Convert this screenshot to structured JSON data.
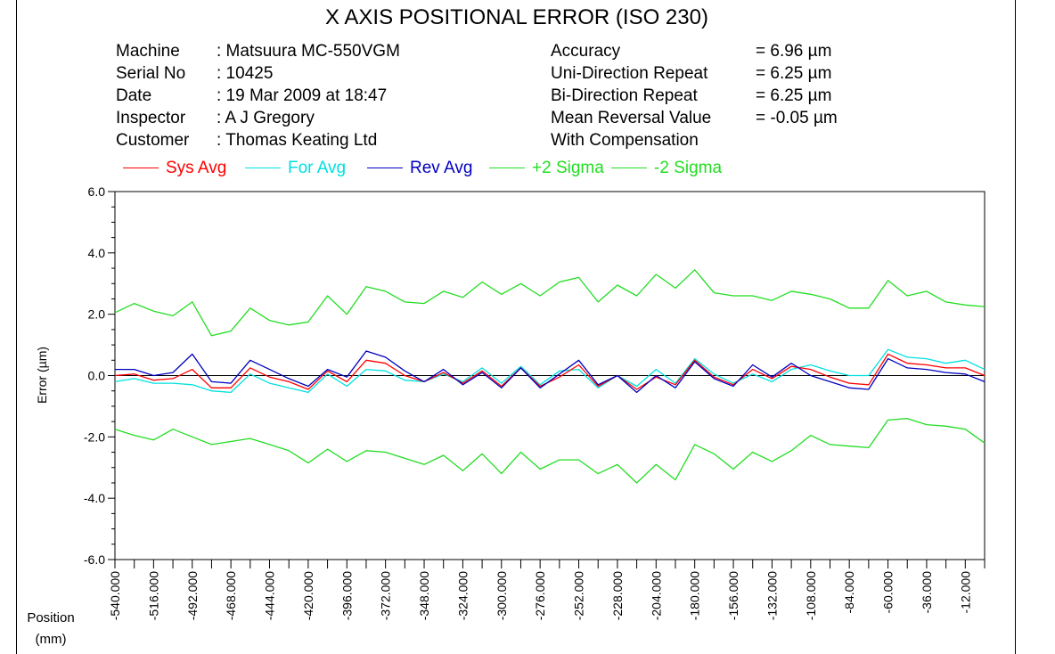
{
  "report": {
    "title": "X AXIS POSITIONAL ERROR (ISO 230)",
    "fields_left": [
      {
        "label": "Machine",
        "value": ": Matsuura MC-550VGM"
      },
      {
        "label": "Serial No",
        "value": ": 10425"
      },
      {
        "label": "Date",
        "value": ": 19 Mar 2009 at 18:47"
      },
      {
        "label": "Inspector",
        "value": ": A J Gregory"
      },
      {
        "label": "Customer",
        "value": ": Thomas Keating Ltd"
      }
    ],
    "fields_right": [
      {
        "label": "Accuracy",
        "value": "=  6.96 µm"
      },
      {
        "label": "Uni-Direction Repeat",
        "value": "=  6.25 µm"
      },
      {
        "label": "Bi-Direction Repeat",
        "value": "=  6.25 µm"
      },
      {
        "label": "Mean Reversal Value",
        "value": "= -0.05 µm"
      },
      {
        "label": "With Compensation",
        "value": ""
      }
    ]
  },
  "chart_data": {
    "type": "line",
    "ylabel": "Error (µm)",
    "xlabel": "Position\n(mm)",
    "ylim": [
      -6.0,
      6.0
    ],
    "xlim": [
      -540,
      0
    ],
    "y_ticks": [
      6.0,
      4.0,
      2.0,
      0.0,
      -2.0,
      -4.0,
      -6.0
    ],
    "y_tick_labels": [
      "6.0",
      "4.0",
      "2.0",
      "0.0",
      "-2.0",
      "-4.0",
      "-6.0"
    ],
    "x_tick_labels": [
      "-540.000",
      "-516.000",
      "-492.000",
      "-468.000",
      "-444.000",
      "-420.000",
      "-396.000",
      "-372.000",
      "-348.000",
      "-324.000",
      "-300.000",
      "-276.000",
      "-252.000",
      "-228.000",
      "-204.000",
      "-180.000",
      "-156.000",
      "-132.000",
      "-108.000",
      "-84.000",
      "-60.000",
      "-36.000",
      "-12.000"
    ],
    "x_tick_values": [
      -540,
      -516,
      -492,
      -468,
      -444,
      -420,
      -396,
      -372,
      -348,
      -324,
      -300,
      -276,
      -252,
      -228,
      -204,
      -180,
      -156,
      -132,
      -108,
      -84,
      -60,
      -36,
      -12
    ],
    "legend_position": "top",
    "grid": false,
    "x": [
      -540,
      -528,
      -516,
      -504,
      -492,
      -480,
      -468,
      -456,
      -444,
      -432,
      -420,
      -408,
      -396,
      -384,
      -372,
      -360,
      -348,
      -336,
      -324,
      -312,
      -300,
      -288,
      -276,
      -264,
      -252,
      -240,
      -228,
      -216,
      -204,
      -192,
      -180,
      -168,
      -156,
      -144,
      -132,
      -120,
      -108,
      -96,
      -84,
      -72,
      -60,
      -48,
      -36,
      -24,
      -12,
      0
    ],
    "series": [
      {
        "name": "Sys Avg",
        "color": "#ff0000",
        "values": [
          0.0,
          0.05,
          -0.15,
          -0.1,
          0.2,
          -0.4,
          -0.4,
          0.25,
          -0.05,
          -0.2,
          -0.45,
          0.15,
          -0.2,
          0.5,
          0.4,
          0.0,
          -0.2,
          0.1,
          -0.25,
          0.15,
          -0.35,
          0.25,
          -0.35,
          -0.05,
          0.35,
          -0.35,
          0.0,
          -0.45,
          -0.05,
          -0.3,
          0.5,
          -0.05,
          -0.3,
          0.2,
          -0.1,
          0.3,
          0.2,
          -0.05,
          -0.25,
          -0.3,
          0.7,
          0.4,
          0.35,
          0.25,
          0.25,
          0.0
        ]
      },
      {
        "name": "For Avg",
        "color": "#00e0e0",
        "values": [
          -0.2,
          -0.1,
          -0.25,
          -0.25,
          -0.3,
          -0.5,
          -0.55,
          0.05,
          -0.25,
          -0.4,
          -0.55,
          0.05,
          -0.35,
          0.2,
          0.15,
          -0.15,
          -0.2,
          0.05,
          -0.2,
          0.25,
          -0.25,
          0.3,
          -0.3,
          0.15,
          0.2,
          -0.4,
          0.0,
          -0.35,
          0.2,
          -0.25,
          0.55,
          0.05,
          -0.25,
          0.05,
          -0.2,
          0.2,
          0.35,
          0.15,
          0.0,
          0.0,
          0.85,
          0.6,
          0.55,
          0.4,
          0.5,
          0.2
        ]
      },
      {
        "name": "Rev Avg",
        "color": "#0000c0",
        "values": [
          0.2,
          0.2,
          0.0,
          0.1,
          0.7,
          -0.2,
          -0.25,
          0.5,
          0.2,
          -0.1,
          -0.35,
          0.2,
          -0.05,
          0.8,
          0.6,
          0.15,
          -0.2,
          0.2,
          -0.3,
          0.1,
          -0.4,
          0.25,
          -0.4,
          0.05,
          0.5,
          -0.3,
          0.0,
          -0.55,
          0.0,
          -0.4,
          0.45,
          -0.1,
          -0.35,
          0.35,
          -0.05,
          0.4,
          0.0,
          -0.2,
          -0.4,
          -0.45,
          0.55,
          0.25,
          0.2,
          0.1,
          0.05,
          -0.2
        ]
      },
      {
        "name": "+2 Sigma",
        "color": "#22dd22",
        "values": [
          2.05,
          2.35,
          2.1,
          1.95,
          2.4,
          1.3,
          1.45,
          2.2,
          1.8,
          1.65,
          1.75,
          2.6,
          2.0,
          2.9,
          2.75,
          2.4,
          2.35,
          2.75,
          2.55,
          3.05,
          2.65,
          3.0,
          2.6,
          3.05,
          3.2,
          2.4,
          2.95,
          2.6,
          3.3,
          2.85,
          3.45,
          2.7,
          2.6,
          2.6,
          2.45,
          2.75,
          2.65,
          2.5,
          2.2,
          2.2,
          3.1,
          2.6,
          2.75,
          2.4,
          2.3,
          2.25
        ]
      },
      {
        "name": "-2 Sigma",
        "color": "#22dd22",
        "values": [
          -1.75,
          -1.95,
          -2.1,
          -1.75,
          -2.0,
          -2.25,
          -2.15,
          -2.05,
          -2.25,
          -2.45,
          -2.85,
          -2.4,
          -2.8,
          -2.45,
          -2.5,
          -2.7,
          -2.9,
          -2.6,
          -3.1,
          -2.55,
          -3.2,
          -2.5,
          -3.05,
          -2.75,
          -2.75,
          -3.2,
          -2.9,
          -3.5,
          -2.9,
          -3.4,
          -2.25,
          -2.55,
          -3.05,
          -2.5,
          -2.8,
          -2.45,
          -1.95,
          -2.25,
          -2.3,
          -2.35,
          -1.45,
          -1.4,
          -1.6,
          -1.65,
          -1.75,
          -2.2
        ]
      }
    ]
  }
}
